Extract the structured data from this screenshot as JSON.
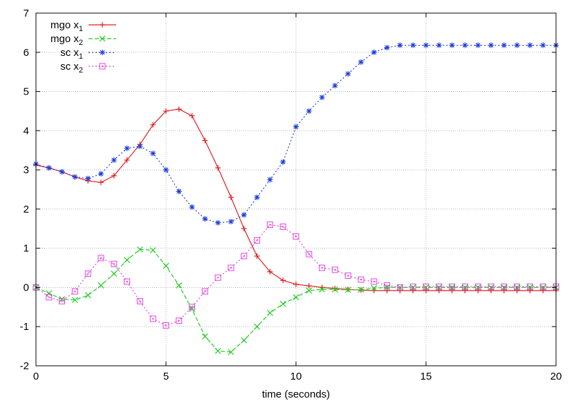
{
  "chart_data": {
    "type": "line",
    "title": "",
    "xlabel": "time (seconds)",
    "ylabel": "",
    "xlim": [
      0,
      20
    ],
    "ylim": [
      -2,
      7
    ],
    "xticks": [
      0,
      5,
      10,
      15,
      20
    ],
    "yticks": [
      -2,
      -1,
      0,
      1,
      2,
      3,
      4,
      5,
      6,
      7
    ],
    "grid": true,
    "legend_position": "top-left",
    "series": [
      {
        "name": "mgo x",
        "subscript": "1",
        "color": "#e41a1c",
        "marker": "plus",
        "dash": "solid",
        "x": [
          0,
          0.5,
          1,
          1.5,
          2,
          2.5,
          3,
          3.5,
          4,
          4.5,
          5,
          5.5,
          6,
          6.5,
          7,
          7.5,
          8,
          8.5,
          9,
          9.5,
          10,
          10.5,
          11,
          11.5,
          12,
          12.5,
          13,
          13.5,
          14,
          14.5,
          15,
          15.5,
          16,
          16.5,
          17,
          17.5,
          18,
          18.5,
          19,
          19.5,
          20
        ],
        "y": [
          3.12,
          3.05,
          2.95,
          2.82,
          2.72,
          2.68,
          2.85,
          3.25,
          3.65,
          4.15,
          4.5,
          4.55,
          4.38,
          3.75,
          3.05,
          2.3,
          1.5,
          0.8,
          0.4,
          0.18,
          0.08,
          0.04,
          0.0,
          -0.03,
          -0.05,
          -0.07,
          -0.08,
          -0.08,
          -0.08,
          -0.08,
          -0.08,
          -0.08,
          -0.08,
          -0.08,
          -0.08,
          -0.08,
          -0.08,
          -0.08,
          -0.08,
          -0.08,
          -0.08
        ]
      },
      {
        "name": "mgo x",
        "subscript": "2",
        "color": "#1fcc1f",
        "marker": "x",
        "dash": "dashed",
        "x": [
          0,
          0.5,
          1,
          1.5,
          2,
          2.5,
          3,
          3.5,
          4,
          4.5,
          5,
          5.5,
          6,
          6.5,
          7,
          7.5,
          8,
          8.5,
          9,
          9.5,
          10,
          10.5,
          11,
          11.5,
          12,
          12.5,
          13,
          13.5,
          14,
          14.5,
          15,
          15.5,
          16,
          16.5,
          17,
          17.5,
          18,
          18.5,
          19,
          19.5,
          20
        ],
        "y": [
          0.0,
          -0.15,
          -0.3,
          -0.32,
          -0.2,
          0.05,
          0.35,
          0.7,
          0.97,
          0.95,
          0.55,
          0.05,
          -0.55,
          -1.25,
          -1.62,
          -1.65,
          -1.35,
          -1.0,
          -0.65,
          -0.42,
          -0.25,
          -0.08,
          -0.05,
          -0.05,
          -0.06,
          -0.06,
          -0.02,
          0.0,
          0.0,
          0.0,
          0.0,
          0.0,
          0.0,
          0.0,
          0.0,
          0.0,
          0.0,
          0.0,
          0.0,
          0.0,
          0.0
        ]
      },
      {
        "name": "sc x",
        "subscript": "1",
        "color": "#1f3fd8",
        "marker": "star",
        "dash": "dotted",
        "x": [
          0,
          0.5,
          1,
          1.5,
          2,
          2.5,
          3,
          3.5,
          4,
          4.5,
          5,
          5.5,
          6,
          6.5,
          7,
          7.5,
          8,
          8.5,
          9,
          9.5,
          10,
          10.5,
          11,
          11.5,
          12,
          12.5,
          13,
          13.5,
          14,
          14.5,
          15,
          15.5,
          16,
          16.5,
          17,
          17.5,
          18,
          18.5,
          19,
          19.5,
          20
        ],
        "y": [
          3.15,
          3.05,
          2.95,
          2.82,
          2.78,
          2.9,
          3.25,
          3.55,
          3.6,
          3.42,
          3.0,
          2.45,
          2.05,
          1.75,
          1.65,
          1.68,
          1.85,
          2.3,
          2.75,
          3.2,
          4.1,
          4.5,
          4.85,
          5.15,
          5.45,
          5.75,
          6.0,
          6.12,
          6.18,
          6.18,
          6.18,
          6.18,
          6.18,
          6.18,
          6.18,
          6.18,
          6.18,
          6.18,
          6.18,
          6.18,
          6.18
        ]
      },
      {
        "name": "sc x",
        "subscript": "2",
        "color": "#e040e0",
        "marker": "square",
        "dash": "dotted",
        "x": [
          0,
          0.5,
          1,
          1.5,
          2,
          2.5,
          3,
          3.5,
          4,
          4.5,
          5,
          5.5,
          6,
          6.5,
          7,
          7.5,
          8,
          8.5,
          9,
          9.5,
          10,
          10.5,
          11,
          11.5,
          12,
          12.5,
          13,
          13.5,
          14,
          14.5,
          15,
          15.5,
          16,
          16.5,
          17,
          17.5,
          18,
          18.5,
          19,
          19.5,
          20
        ],
        "y": [
          0.0,
          -0.25,
          -0.35,
          -0.1,
          0.35,
          0.75,
          0.6,
          0.15,
          -0.35,
          -0.8,
          -0.97,
          -0.85,
          -0.5,
          -0.1,
          0.25,
          0.5,
          0.8,
          1.2,
          1.6,
          1.55,
          1.3,
          0.85,
          0.5,
          0.45,
          0.3,
          0.2,
          0.15,
          0.05,
          0.0,
          0.02,
          0.02,
          0.02,
          0.02,
          0.02,
          0.02,
          0.02,
          0.02,
          0.02,
          0.02,
          0.02,
          0.02
        ]
      }
    ]
  }
}
